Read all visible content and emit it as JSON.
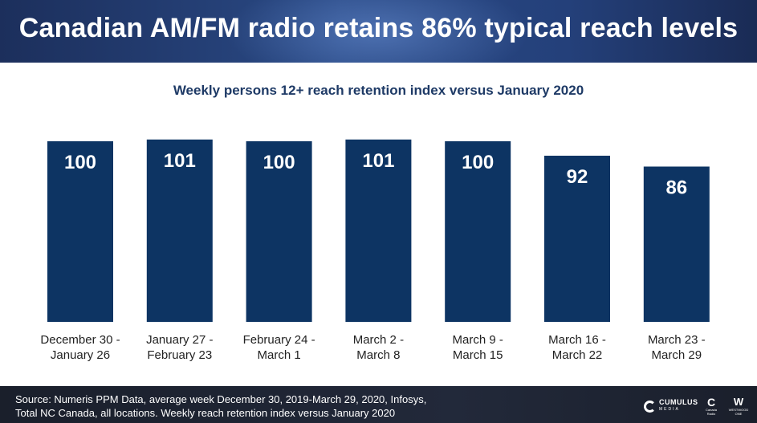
{
  "header": {
    "title": "Canadian AM/FM radio retains 86% typical reach levels"
  },
  "chart_data": {
    "type": "bar",
    "title": "Weekly persons 12+ reach retention index versus January 2020",
    "categories": [
      [
        "December 30 -",
        "January 26"
      ],
      [
        "January 27 -",
        "February 23"
      ],
      [
        "February 24 -",
        "March 1"
      ],
      [
        "March 2 -",
        "March 8"
      ],
      [
        "March 9 -",
        "March 15"
      ],
      [
        "March 16 -",
        "March 22"
      ],
      [
        "March 23 -",
        "March 29"
      ]
    ],
    "values": [
      100,
      101,
      100,
      101,
      100,
      92,
      86
    ],
    "data_labels": [
      "100",
      "101",
      "100",
      "101",
      "100",
      "92",
      "86"
    ],
    "bar_color": "#0d3463",
    "label_color": "#ffffff",
    "axis_visible": false,
    "grid": false
  },
  "footer": {
    "source_line1": "Source: Numeris PPM Data, average week December 30, 2019-March 29, 2020, Infosys,",
    "source_line2": "Total NC Canada, all locations. Weekly reach retention index versus January 2020",
    "logos": [
      {
        "name": "cumulus-media-logo",
        "text": "CUMULUS",
        "subtext": "MEDIA"
      },
      {
        "name": "canada-radio-logo",
        "text": "C",
        "subtext": "Canada Radio"
      },
      {
        "name": "westwood-one-logo",
        "text": "W",
        "subtext": "WESTWOOD ONE"
      }
    ]
  }
}
